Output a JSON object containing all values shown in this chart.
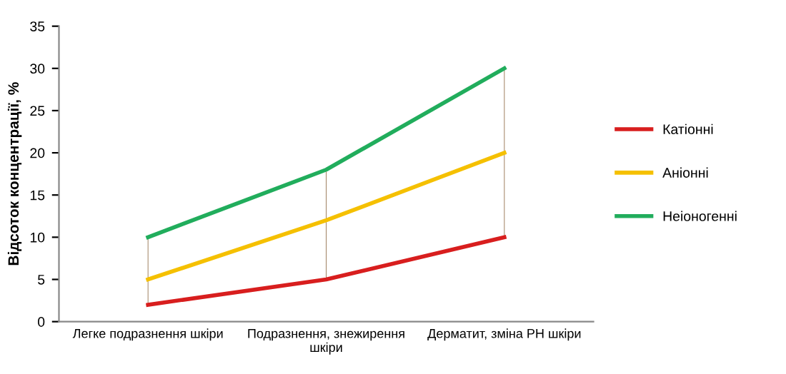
{
  "chart_data": {
    "type": "line",
    "ylabel": "Відсоток концентрації, %",
    "categories": [
      "Легке подразнення шкіри",
      "Подразнення, знежирення\nшкіри",
      "Дерматит, зміна PH шкіри"
    ],
    "series": [
      {
        "name": "Катіонні",
        "color": "#d81e1e",
        "values": [
          2,
          5,
          10
        ]
      },
      {
        "name": "Аніонні",
        "color": "#f5c000",
        "values": [
          5,
          12,
          20
        ]
      },
      {
        "name": "Неіоногенні",
        "color": "#21ad5c",
        "values": [
          10,
          18,
          30
        ]
      },
      {
        "type": "bar",
        "color": "#a08060",
        "base": [
          2,
          5,
          10
        ],
        "values": [
          8,
          13,
          20
        ]
      }
    ],
    "ylim": [
      0,
      35
    ],
    "yticks": [
      0,
      5,
      10,
      15,
      20,
      25,
      30,
      35
    ],
    "grid": false,
    "legend": "right",
    "marker": "none",
    "line_style": "solid"
  }
}
